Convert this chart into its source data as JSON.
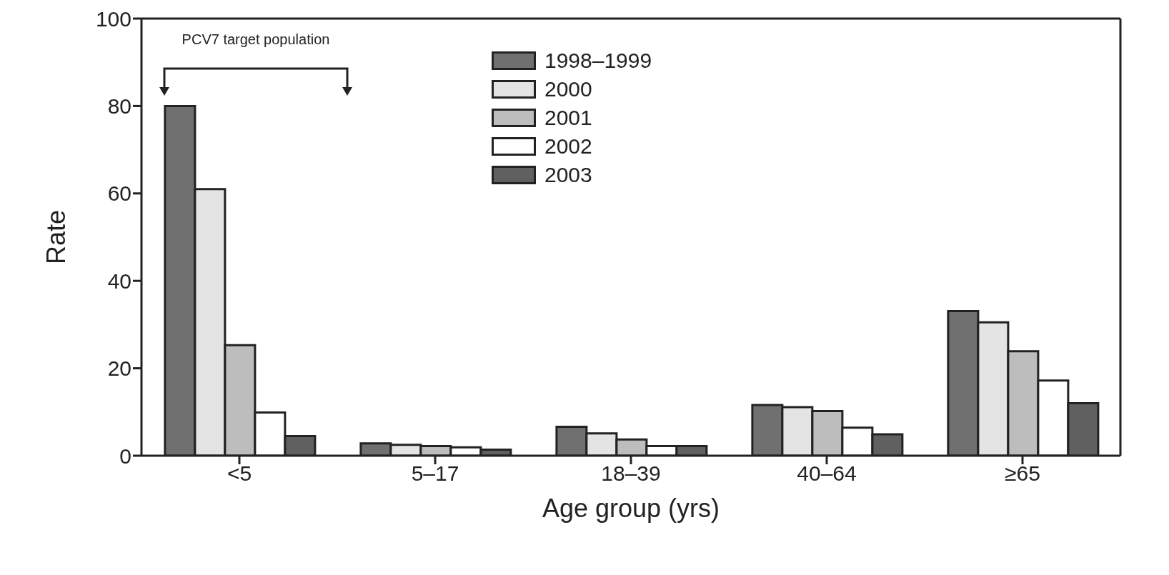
{
  "chart_data": {
    "type": "bar",
    "xlabel": "Age group (yrs)",
    "ylabel": "Rate",
    "categories": [
      "<5",
      "5–17",
      "18–39",
      "40–64",
      "≥65"
    ],
    "series": [
      {
        "name": "1998–1999",
        "color": "#707070",
        "values": [
          80,
          2.8,
          6.6,
          11.6,
          33.1
        ]
      },
      {
        "name": "2000",
        "color": "#e4e4e4",
        "values": [
          61,
          2.5,
          5.1,
          11.1,
          30.5
        ]
      },
      {
        "name": "2001",
        "color": "#bdbdbd",
        "values": [
          25.3,
          2.2,
          3.7,
          10.2,
          23.9
        ]
      },
      {
        "name": "2002",
        "color": "#ffffff",
        "values": [
          9.9,
          1.9,
          2.2,
          6.4,
          17.2
        ]
      },
      {
        "name": "2003",
        "color": "#606060",
        "values": [
          4.5,
          1.4,
          2.2,
          4.9,
          12.0
        ]
      }
    ],
    "ylim": [
      0,
      100
    ],
    "yticks": [
      0,
      20,
      40,
      60,
      80,
      100
    ],
    "grid": false,
    "legend": "top",
    "annotations": [
      "PCV7 target population"
    ]
  }
}
